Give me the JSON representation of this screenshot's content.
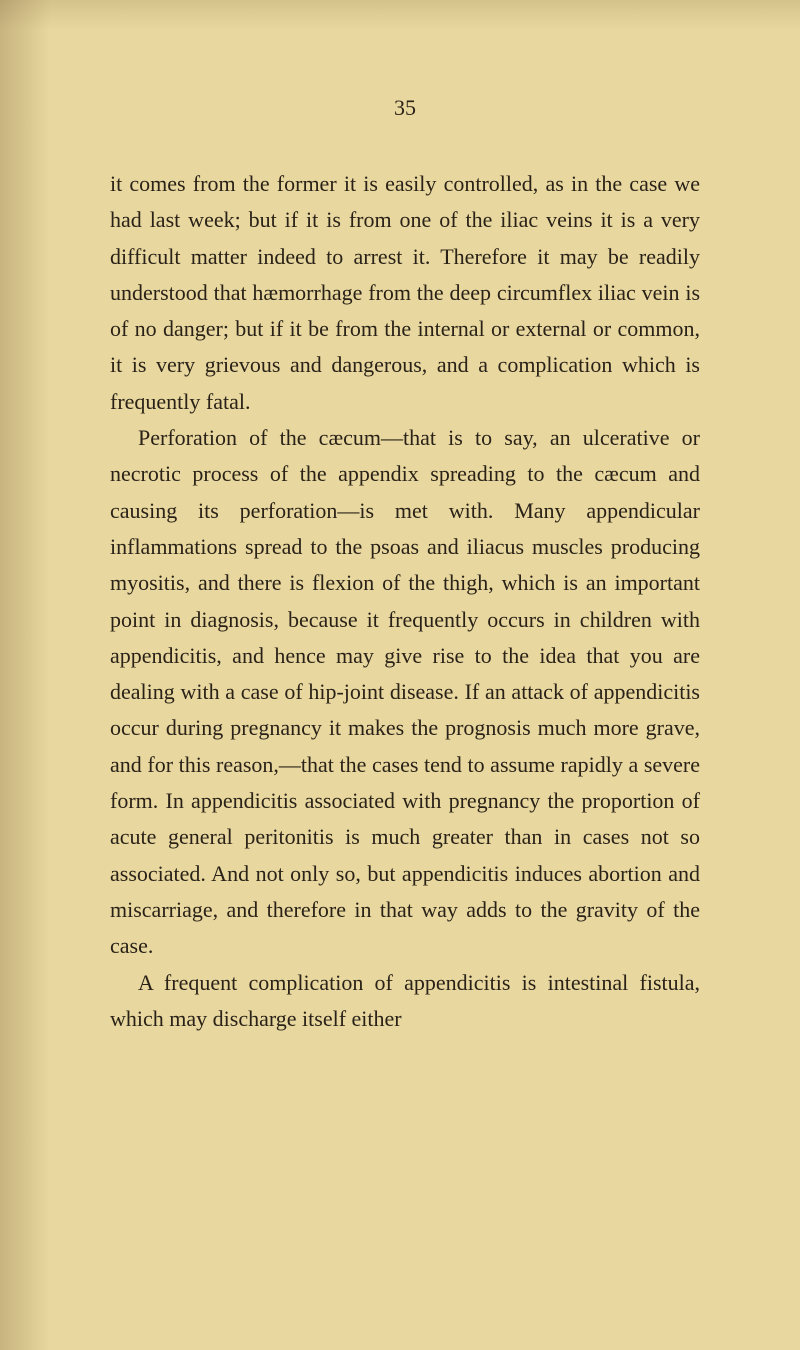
{
  "page": {
    "number": "35",
    "background_color": "#e8d89f",
    "text_color": "#2a2218",
    "font_size": 22,
    "line_height": 1.65,
    "paragraphs": [
      {
        "indent": false,
        "text": "it comes from the former it is easily controlled, as in the case we had last week; but if it is from one of the iliac veins it is a very difficult matter indeed to arrest it. Therefore it may be readily understood that hæmorrhage from the deep circumflex iliac vein is of no danger; but if it be from the internal or external or common, it is very grievous and dangerous, and a complication which is frequently fatal."
      },
      {
        "indent": true,
        "text": "Perforation of the cæcum—that is to say, an ulcerative or necrotic process of the appendix spreading to the cæcum and causing its perforation—is met with. Many appendicular inflammations spread to the psoas and iliacus muscles producing myositis, and there is flexion of the thigh, which is an important point in diagnosis, because it frequently occurs in children with appendicitis, and hence may give rise to the idea that you are dealing with a case of hip-joint disease. If an attack of appendicitis occur during pregnancy it makes the prognosis much more grave, and for this reason,—that the cases tend to assume rapidly a severe form. In appendicitis associated with pregnancy the proportion of acute general peritonitis is much greater than in cases not so associated. And not only so, but appendicitis induces abortion and miscarriage, and therefore in that way adds to the gravity of the case."
      },
      {
        "indent": true,
        "text": "A frequent complication of appendicitis is intestinal fistula, which may discharge itself either"
      }
    ]
  }
}
